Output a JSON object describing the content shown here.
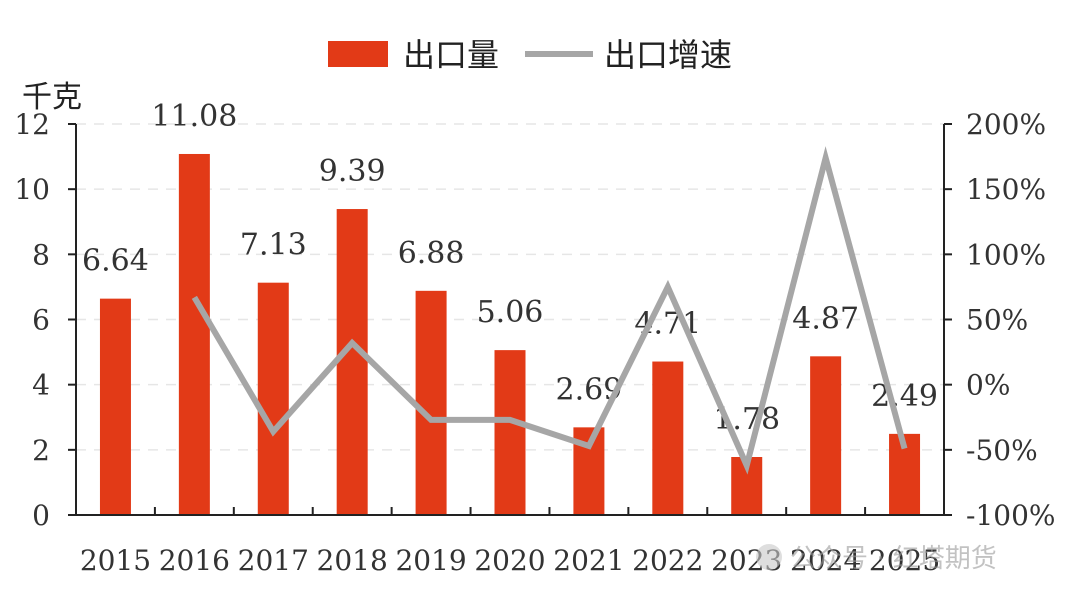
{
  "chart_data": {
    "type": "bar",
    "categories": [
      "2015",
      "2016",
      "2017",
      "2018",
      "2019",
      "2020",
      "2021",
      "2022",
      "2023",
      "2024",
      "2025"
    ],
    "series": [
      {
        "name": "出口量",
        "type": "bar",
        "axis": "left",
        "color": "#e23a17",
        "values": [
          6.64,
          11.08,
          7.13,
          9.39,
          6.88,
          5.06,
          2.69,
          4.71,
          1.78,
          4.87,
          2.49
        ],
        "labels": [
          "6.64",
          "11.08",
          "7.13",
          "9.39",
          "6.88",
          "5.06",
          "2.69",
          "4.71",
          "1.78",
          "4.87",
          "2.49"
        ]
      },
      {
        "name": "出口增速",
        "type": "line",
        "axis": "right",
        "color": "#a6a6a6",
        "values": [
          null,
          67,
          -36,
          32,
          -27,
          -27,
          -47,
          75,
          -62,
          174,
          -49
        ]
      }
    ],
    "ylabel": "千克",
    "y_left": {
      "range": [
        0,
        12
      ],
      "ticks": [
        "0",
        "2",
        "4",
        "6",
        "8",
        "10",
        "12"
      ]
    },
    "y_right": {
      "range": [
        -100,
        200
      ],
      "ticks": [
        "-100%",
        "-50%",
        "0%",
        "50%",
        "100%",
        "150%",
        "200%"
      ]
    },
    "grid": true,
    "legend_position": "top"
  },
  "watermark": {
    "text": "公众号 · 红塔期货"
  }
}
